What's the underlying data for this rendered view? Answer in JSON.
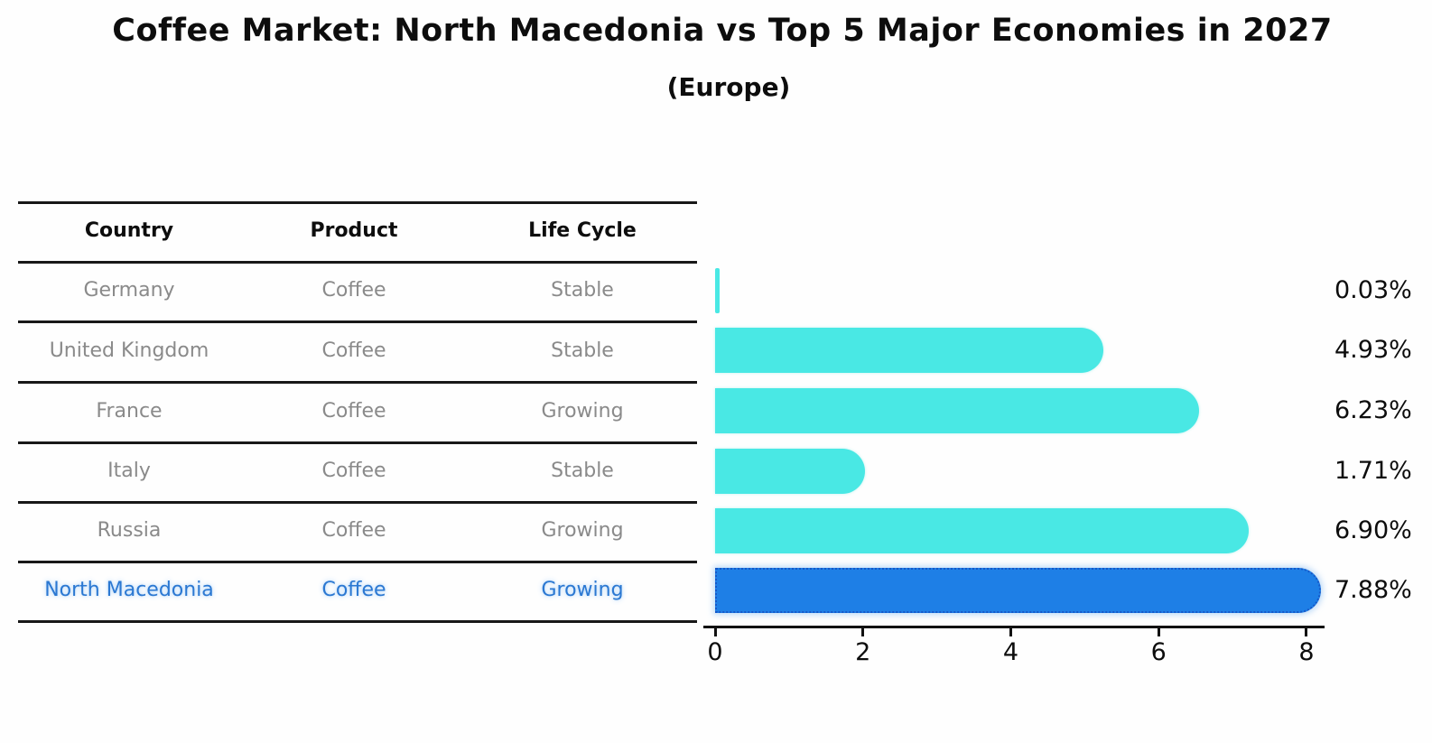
{
  "header": {
    "title": "Coffee Market: North Macedonia vs Top 5 Major Economies in 2027",
    "subtitle": "(Europe)"
  },
  "table": {
    "columns": [
      "Country",
      "Product",
      "Life Cycle"
    ],
    "rows": [
      {
        "country": "Germany",
        "product": "Coffee",
        "life_cycle": "Stable",
        "highlight": false
      },
      {
        "country": "United Kingdom",
        "product": "Coffee",
        "life_cycle": "Stable",
        "highlight": false
      },
      {
        "country": "France",
        "product": "Coffee",
        "life_cycle": "Growing",
        "highlight": false
      },
      {
        "country": "Italy",
        "product": "Coffee",
        "life_cycle": "Stable",
        "highlight": false
      },
      {
        "country": "Russia",
        "product": "Coffee",
        "life_cycle": "Growing",
        "highlight": false
      },
      {
        "country": "North Macedonia",
        "product": "Coffee",
        "life_cycle": "Growing",
        "highlight": true
      }
    ]
  },
  "chart_data": {
    "type": "bar",
    "orientation": "horizontal",
    "title": "Coffee Market: North Macedonia vs Top 5 Major Economies in 2027 (Europe)",
    "categories": [
      "Germany",
      "United Kingdom",
      "France",
      "Italy",
      "Russia",
      "North Macedonia"
    ],
    "values": [
      0.03,
      4.93,
      6.23,
      1.71,
      6.9,
      7.88
    ],
    "value_labels": [
      "0.03%",
      "4.93%",
      "6.23%",
      "1.71%",
      "6.90%",
      "7.88%"
    ],
    "xlabel": "",
    "ylabel": "",
    "xticks": [
      0,
      2,
      4,
      6,
      8
    ],
    "xlim": [
      0,
      8.2
    ],
    "grid": false,
    "legend": "none",
    "highlight_index": 5,
    "bar_color": "#49e8e4",
    "highlight_bar_color": "#1e7fe6",
    "highlight_text_color": "#2b78d2"
  }
}
